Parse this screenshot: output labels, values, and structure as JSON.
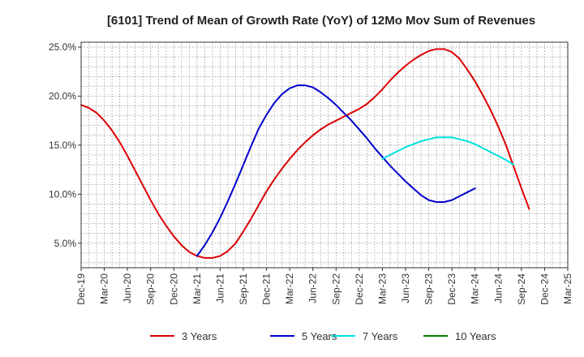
{
  "chart_data": {
    "type": "line",
    "title": "[6101]  Trend of Mean of Growth Rate (YoY) of 12Mo Mov Sum of Revenues",
    "xlabel": "",
    "ylabel": "",
    "x_start": "Dec-19",
    "months": 63,
    "ylim": [
      2.5,
      25.5
    ],
    "y_ticks": [
      5,
      10,
      15,
      20,
      25
    ],
    "y_tick_labels": [
      "5.0%",
      "10.0%",
      "15.0%",
      "20.0%",
      "25.0%"
    ],
    "x_tick_labels": [
      "Dec-19",
      "Mar-20",
      "Jun-20",
      "Sep-20",
      "Dec-20",
      "Mar-21",
      "Jun-21",
      "Sep-21",
      "Dec-21",
      "Mar-22",
      "Jun-22",
      "Sep-22",
      "Dec-22",
      "Mar-23",
      "Jun-23",
      "Sep-23",
      "Dec-23",
      "Mar-24",
      "Jun-24",
      "Sep-24",
      "Dec-24",
      "Mar-25"
    ],
    "grid": true,
    "legend_position": "bottom",
    "series": [
      {
        "name": "3 Years",
        "color": "#dd0000",
        "start_index": 0,
        "values": [
          19.1,
          18.8,
          18.3,
          17.5,
          16.5,
          15.3,
          13.9,
          12.4,
          10.9,
          9.4,
          8.0,
          6.8,
          5.7,
          4.8,
          4.1,
          3.7,
          3.5,
          3.5,
          3.7,
          4.2,
          5.0,
          6.2,
          7.5,
          8.9,
          10.3,
          11.5,
          12.6,
          13.6,
          14.5,
          15.3,
          16.0,
          16.6,
          17.1,
          17.5,
          17.9,
          18.3,
          18.7,
          19.2,
          19.9,
          20.7,
          21.6,
          22.4,
          23.1,
          23.7,
          24.2,
          24.6,
          24.8,
          24.8,
          24.5,
          23.8,
          22.7,
          21.5,
          20.1,
          18.6,
          16.9,
          15.0,
          12.8,
          10.6,
          8.5
        ]
      },
      {
        "name": "5 Years",
        "color": "#0000cc",
        "start_index": 15,
        "values": [
          3.7,
          4.8,
          6.1,
          7.6,
          9.3,
          11.1,
          13.0,
          14.9,
          16.7,
          18.1,
          19.3,
          20.2,
          20.8,
          21.1,
          21.1,
          20.9,
          20.4,
          19.8,
          19.1,
          18.3,
          17.5,
          16.6,
          15.7,
          14.7,
          13.8,
          12.9,
          12.1,
          11.3,
          10.6,
          9.9,
          9.4,
          9.2,
          9.2,
          9.4,
          9.8,
          10.2,
          10.6
        ]
      },
      {
        "name": "7 Years",
        "color": "#00e0e0",
        "start_index": 39,
        "values": [
          13.6,
          14.0,
          14.4,
          14.8,
          15.1,
          15.4,
          15.6,
          15.8,
          15.8,
          15.8,
          15.6,
          15.4,
          15.1,
          14.7,
          14.3,
          13.9,
          13.5,
          13.0
        ]
      },
      {
        "name": "10 Years",
        "color": "#008000",
        "start_index": 0,
        "values": []
      }
    ]
  }
}
